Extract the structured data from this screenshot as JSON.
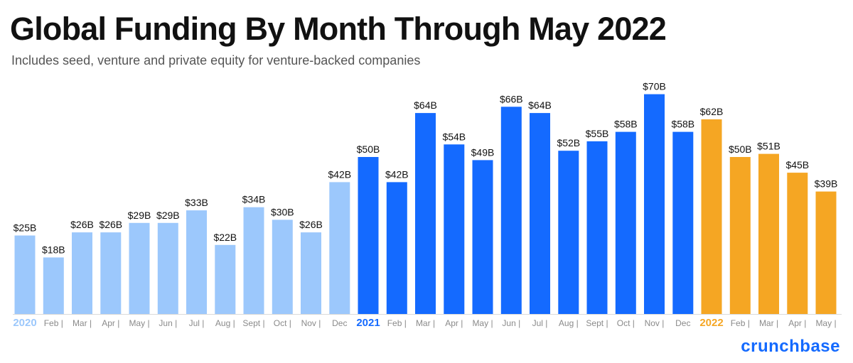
{
  "header": {
    "title": "Global Funding By Month Through May 2022",
    "subtitle": "Includes seed, venture and private equity for venture-backed companies"
  },
  "brand": {
    "name": "crunchbase"
  },
  "colors": {
    "2020": "#9cc8fc",
    "2021": "#146aff",
    "2022": "#f5a623",
    "baseline": "#d9d9d9"
  },
  "chart_data": {
    "type": "bar",
    "unit": "$B",
    "ylim": [
      0,
      70
    ],
    "grid": false,
    "legend": "none",
    "categories": [
      "2020",
      "Feb",
      "Mar",
      "Apr",
      "May",
      "Jun",
      "Jul",
      "Aug",
      "Sept",
      "Oct",
      "Nov",
      "Dec",
      "2021",
      "Feb",
      "Mar",
      "Apr",
      "May",
      "Jun",
      "Jul",
      "Aug",
      "Sept",
      "Oct",
      "Nov",
      "Dec",
      "2022",
      "Feb",
      "Mar",
      "Apr",
      "May"
    ],
    "values": [
      25,
      18,
      26,
      26,
      29,
      29,
      33,
      22,
      34,
      30,
      26,
      42,
      50,
      42,
      64,
      54,
      49,
      66,
      64,
      52,
      55,
      58,
      70,
      58,
      62,
      50,
      51,
      45,
      39
    ],
    "value_labels": [
      "$25B",
      "$18B",
      "$26B",
      "$26B",
      "$29B",
      "$29B",
      "$33B",
      "$22B",
      "$34B",
      "$30B",
      "$26B",
      "$42B",
      "$50B",
      "$42B",
      "$64B",
      "$54B",
      "$49B",
      "$66B",
      "$64B",
      "$52B",
      "$55B",
      "$58B",
      "$70B",
      "$58B",
      "$62B",
      "$50B",
      "$51B",
      "$45B",
      "$39B"
    ],
    "groups": [
      "2020",
      "2020",
      "2020",
      "2020",
      "2020",
      "2020",
      "2020",
      "2020",
      "2020",
      "2020",
      "2020",
      "2020",
      "2021",
      "2021",
      "2021",
      "2021",
      "2021",
      "2021",
      "2021",
      "2021",
      "2021",
      "2021",
      "2021",
      "2021",
      "2022",
      "2022",
      "2022",
      "2022",
      "2022"
    ]
  }
}
